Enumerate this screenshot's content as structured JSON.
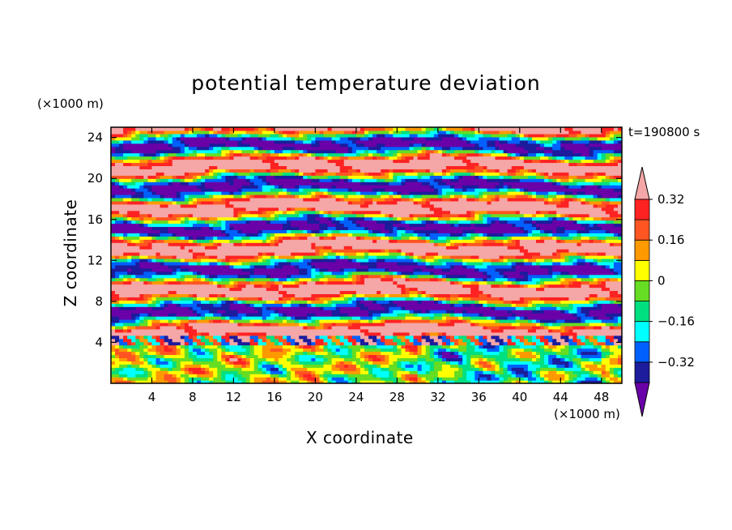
{
  "chart_data": {
    "type": "heatmap",
    "title": "potential temperature deviation",
    "time_label": "t=190800 s",
    "x_axis": {
      "label": "X coordinate",
      "multiplier": "(×1000 m)",
      "range": [
        0,
        50
      ],
      "ticks": [
        4,
        8,
        12,
        16,
        20,
        24,
        28,
        32,
        36,
        40,
        44,
        48
      ]
    },
    "y_axis": {
      "label": "Z coordinate",
      "multiplier": "(×1000 m)",
      "range": [
        0,
        25
      ],
      "ticks": [
        4,
        8,
        12,
        16,
        20,
        24
      ]
    },
    "colorbar": {
      "placement": "right",
      "extends": "both",
      "levels": [
        -0.4,
        -0.32,
        -0.24,
        -0.16,
        -0.08,
        0,
        0.08,
        0.16,
        0.24,
        0.32,
        0.4
      ],
      "tick_labels": [
        "0.32",
        "0.16",
        "0",
        "−0.16",
        "−0.32"
      ],
      "tick_values": [
        0.32,
        0.16,
        0,
        -0.16,
        -0.32
      ],
      "colors": [
        "#6a00a8",
        "#1c1c9c",
        "#0060ff",
        "#00ffff",
        "#00e080",
        "#66dd22",
        "#ffff00",
        "#ff9900",
        "#ff5522",
        "#ff2222",
        "#f5a6a6"
      ]
    },
    "field_description_bands": [
      {
        "z_range": [
          0,
          3.5
        ],
        "dominant": "mixed low-amplitude -0.16 to 0.24"
      },
      {
        "z_range": [
          3.5,
          4.5
        ],
        "dominant": "alternating extremes"
      },
      {
        "z_range": [
          4.5,
          25
        ],
        "dominant": "layered extremes -0.4 / 0.4"
      }
    ]
  }
}
